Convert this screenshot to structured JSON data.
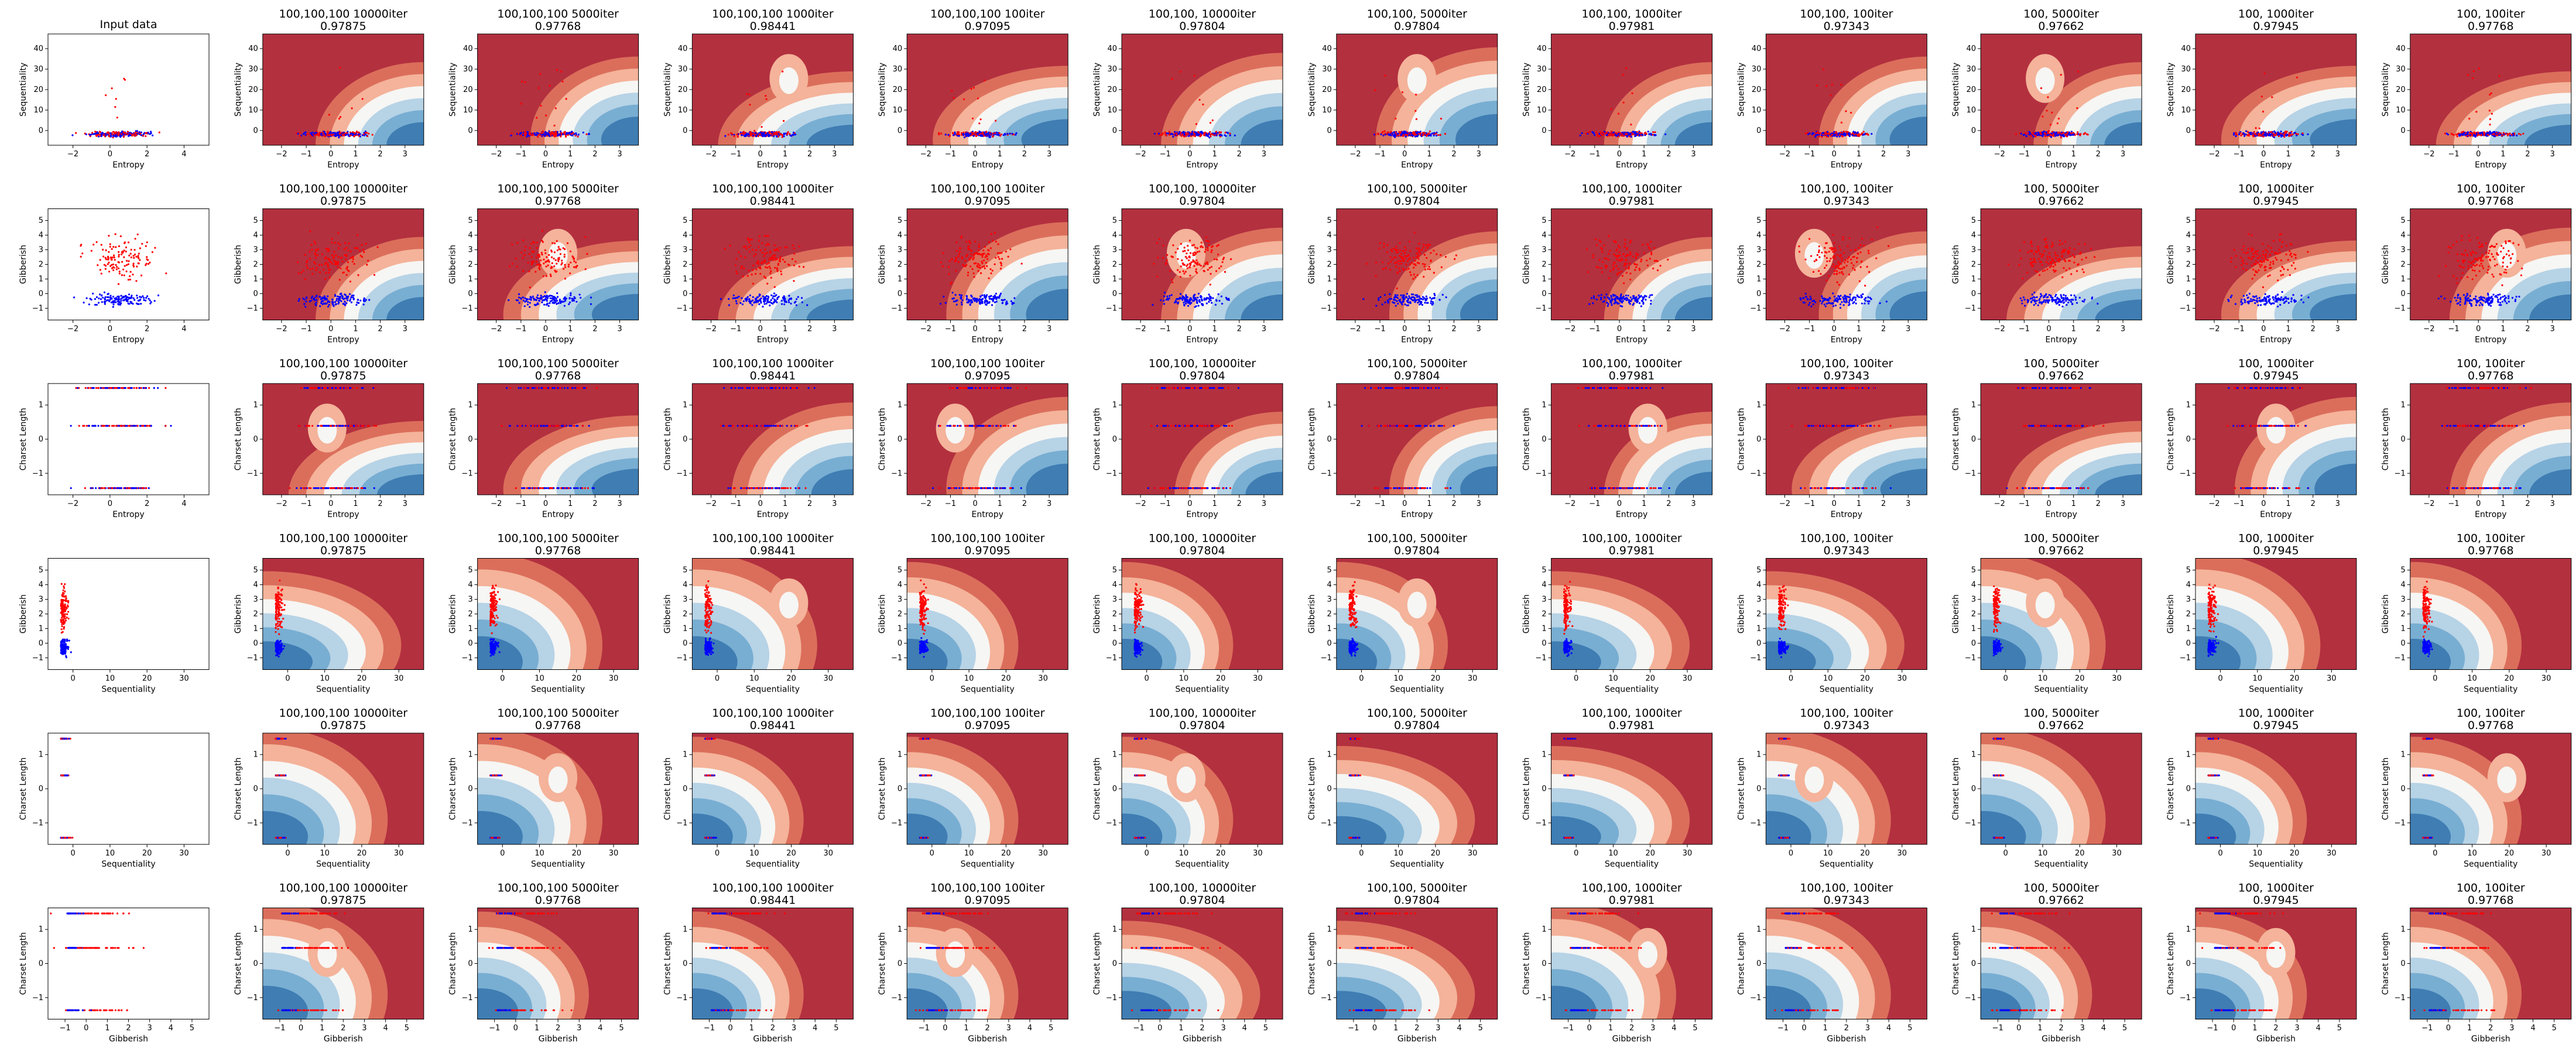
{
  "figure": {
    "first_column_title": "Input data",
    "models": [
      {
        "name": "100,100,100 10000iter",
        "score": "0.97875"
      },
      {
        "name": "100,100,100 5000iter",
        "score": "0.97768"
      },
      {
        "name": "100,100,100 1000iter",
        "score": "0.98441"
      },
      {
        "name": "100,100,100 100iter",
        "score": "0.97095"
      },
      {
        "name": "100,100, 10000iter",
        "score": "0.97804"
      },
      {
        "name": "100,100, 5000iter",
        "score": "0.97804"
      },
      {
        "name": "100,100, 1000iter",
        "score": "0.97981"
      },
      {
        "name": "100,100, 100iter",
        "score": "0.97343"
      },
      {
        "name": "100, 5000iter",
        "score": "0.97662"
      },
      {
        "name": "100, 1000iter",
        "score": "0.97945"
      },
      {
        "name": "100, 100iter",
        "score": "0.97768"
      }
    ]
  },
  "colors": {
    "class_a": "#ff0000",
    "class_b": "#0000ff",
    "contour_dark_red": "#b3303f",
    "contour_mid_red": "#db6e5b",
    "contour_light_red": "#f4b39a",
    "contour_white": "#f6f6f4",
    "contour_light_blue": "#b7d3e6",
    "contour_mid_blue": "#78aed2",
    "contour_dark_blue": "#3f7db3"
  },
  "chart_data": {
    "type": "scatter",
    "description_of_grid": "6 feature-pair rows x 12 columns (input data + 11 classifiers); classifier panels show decision-function contour background with the same scatter points",
    "rows": [
      {
        "xlabel": "Entropy",
        "ylabel": "Sequentiality",
        "input_xlim": [
          -3,
          4
        ],
        "input_xticks": [
          "−2",
          "0",
          "2",
          "4"
        ],
        "model_xticks": [
          "−2",
          "−1",
          "0",
          "1",
          "2",
          "3"
        ],
        "yticks": [
          "0",
          "10",
          "20",
          "30",
          "40"
        ],
        "ylim": [
          -3,
          40
        ]
      },
      {
        "xlabel": "Entropy",
        "ylabel": "Gibberish",
        "input_xlim": [
          -3,
          4
        ],
        "input_xticks": [
          "−2",
          "0",
          "2",
          "4"
        ],
        "model_xticks": [
          "−2",
          "−1",
          "0",
          "1",
          "2",
          "3"
        ],
        "yticks": [
          "−1",
          "0",
          "1",
          "2",
          "3",
          "4",
          "5"
        ],
        "ylim": [
          -1.2,
          5.8
        ]
      },
      {
        "xlabel": "Entropy",
        "ylabel": "Charset Length",
        "input_xlim": [
          -3,
          4
        ],
        "input_xticks": [
          "−2",
          "0",
          "2",
          "4"
        ],
        "model_xticks": [
          "−2",
          "−1",
          "0",
          "1",
          "2",
          "3"
        ],
        "yticks": [
          "−1",
          "0",
          "1"
        ],
        "ylim": [
          -1.8,
          1.8
        ]
      },
      {
        "xlabel": "Sequentiality",
        "ylabel": "Gibberish",
        "input_xlim": [
          -3,
          40
        ],
        "input_xticks": [
          "0",
          "10",
          "20",
          "30"
        ],
        "model_xticks": [
          "0",
          "10",
          "20",
          "30"
        ],
        "yticks": [
          "−1",
          "0",
          "1",
          "2",
          "3",
          "4",
          "5"
        ],
        "ylim": [
          -1.2,
          5.8
        ]
      },
      {
        "xlabel": "Sequentiality",
        "ylabel": "Charset Length",
        "input_xlim": [
          -3,
          40
        ],
        "input_xticks": [
          "0",
          "10",
          "20",
          "30"
        ],
        "model_xticks": [
          "0",
          "10",
          "20",
          "30"
        ],
        "yticks": [
          "−1",
          "0",
          "1"
        ],
        "ylim": [
          -1.8,
          1.8
        ]
      },
      {
        "xlabel": "Gibberish",
        "ylabel": "Charset Length",
        "input_xlim": [
          -1.5,
          6
        ],
        "input_xticks": [
          "−1",
          "0",
          "1",
          "2",
          "3",
          "4",
          "5"
        ],
        "model_xticks": [
          "−1",
          "0",
          "1",
          "2",
          "3",
          "4",
          "5"
        ],
        "yticks": [
          "−1",
          "0",
          "1"
        ],
        "ylim": [
          -1.8,
          1.8
        ]
      }
    ]
  }
}
